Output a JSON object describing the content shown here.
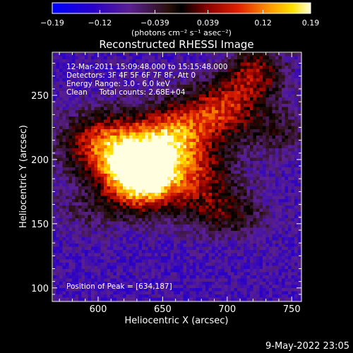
{
  "chart_data": {
    "type": "heatmap",
    "title": "Reconstructed RHESSI Image",
    "xlabel": "Heliocentric X (arcsec)",
    "ylabel": "Heliocentric Y (arcsec)",
    "xlim": [
      565,
      757
    ],
    "ylim": [
      90,
      283
    ],
    "xticks": [
      600,
      650,
      700,
      750
    ],
    "yticks": [
      100,
      150,
      200,
      250
    ],
    "colorbar": {
      "min": -0.19,
      "max": 0.19,
      "ticks": [
        -0.19,
        -0.12,
        -0.039,
        0.039,
        0.12,
        0.19
      ],
      "tick_labels": [
        "−0.19",
        "−0.12",
        "−0.039",
        "0.039",
        "0.12",
        "0.19"
      ],
      "label": "(photons cm⁻² s⁻¹ asec⁻²)"
    },
    "annotations": [
      "12-Mar-2011 15:09:48.000 to 15:15:48.000",
      "Detectors: 3F 4F 5F 6F 7F 8F, Att 0",
      "Energy Range: 3.0 - 6.0 keV",
      "Clean     Total counts: 2.68E+04"
    ],
    "peak_label": "Position of Peak = [634,187]",
    "peak": [
      634,
      187
    ],
    "background_level": -0.1,
    "sources": [
      {
        "x": 634,
        "y": 188,
        "sx": 20,
        "sy": 18,
        "amp": 0.36
      },
      {
        "x": 606,
        "y": 212,
        "sx": 24,
        "sy": 18,
        "amp": 0.19
      },
      {
        "x": 660,
        "y": 218,
        "sx": 20,
        "sy": 18,
        "amp": 0.2
      },
      {
        "x": 697,
        "y": 240,
        "sx": 20,
        "sy": 16,
        "amp": 0.16
      },
      {
        "x": 722,
        "y": 268,
        "sx": 16,
        "sy": 14,
        "amp": 0.14
      },
      {
        "x": 683,
        "y": 182,
        "sx": 20,
        "sy": 18,
        "amp": 0.12
      },
      {
        "x": 702,
        "y": 156,
        "sx": 22,
        "sy": 12,
        "amp": 0.08
      },
      {
        "x": 740,
        "y": 222,
        "sx": 18,
        "sy": 14,
        "amp": 0.07
      },
      {
        "x": 590,
        "y": 160,
        "sx": 18,
        "sy": 12,
        "amp": 0.05
      }
    ]
  },
  "footer": {
    "timestamp": "9-May-2022 23:05"
  }
}
